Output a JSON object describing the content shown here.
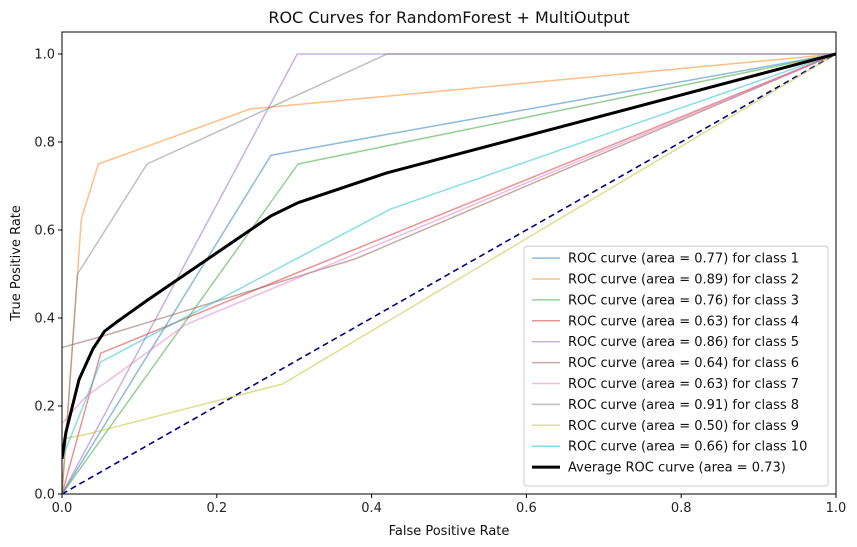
{
  "chart_data": {
    "type": "line",
    "title": "ROC Curves for RandomForest + MultiOutput",
    "xlabel": "False Positive Rate",
    "ylabel": "True Positive Rate",
    "xlim": [
      0.0,
      1.0
    ],
    "ylim": [
      0.0,
      1.05
    ],
    "x_ticks": [
      "0.0",
      "0.2",
      "0.4",
      "0.6",
      "0.8",
      "1.0"
    ],
    "y_ticks": [
      "0.0",
      "0.2",
      "0.4",
      "0.6",
      "0.8",
      "1.0"
    ],
    "grid": false,
    "legend_position": "lower-right",
    "series": [
      {
        "name": "ROC curve (area = 0.77) for class 1",
        "color": "#1f77b4",
        "alpha": 0.5,
        "width": 1.5,
        "points": [
          [
            0,
            0
          ],
          [
            0.27,
            0.77
          ],
          [
            1,
            1
          ]
        ]
      },
      {
        "name": "ROC curve (area = 0.89) for class 2",
        "color": "#ff7f0e",
        "alpha": 0.5,
        "width": 1.5,
        "points": [
          [
            0,
            0
          ],
          [
            0.02,
            0.5
          ],
          [
            0.025,
            0.625
          ],
          [
            0.047,
            0.75
          ],
          [
            0.243,
            0.875
          ],
          [
            1,
            1
          ]
        ]
      },
      {
        "name": "ROC curve (area = 0.76) for class 3",
        "color": "#2ca02c",
        "alpha": 0.5,
        "width": 1.5,
        "points": [
          [
            0,
            0
          ],
          [
            0.305,
            0.75
          ],
          [
            1,
            1
          ]
        ]
      },
      {
        "name": "ROC curve (area = 0.63) for class 4",
        "color": "#d62728",
        "alpha": 0.5,
        "width": 1.5,
        "points": [
          [
            0,
            0
          ],
          [
            0.05,
            0.32
          ],
          [
            0.3,
            0.5
          ],
          [
            1,
            1
          ]
        ]
      },
      {
        "name": "ROC curve (area = 0.86) for class 5",
        "color": "#9467bd",
        "alpha": 0.5,
        "width": 1.5,
        "points": [
          [
            0,
            0
          ],
          [
            0.304,
            1
          ],
          [
            1,
            1
          ]
        ]
      },
      {
        "name": "ROC curve (area = 0.64) for class 6",
        "color": "#8c564b",
        "alpha": 0.5,
        "width": 1.5,
        "points": [
          [
            0,
            0.333
          ],
          [
            0.055,
            0.36
          ],
          [
            0.38,
            0.535
          ],
          [
            1,
            1
          ]
        ]
      },
      {
        "name": "ROC curve (area = 0.63) for class 7",
        "color": "#e377c2",
        "alpha": 0.5,
        "width": 1.5,
        "points": [
          [
            0,
            0.16
          ],
          [
            0.03,
            0.22
          ],
          [
            0.16,
            0.385
          ],
          [
            1,
            1
          ]
        ]
      },
      {
        "name": "ROC curve (area = 0.91) for class 8",
        "color": "#7f7f7f",
        "alpha": 0.5,
        "width": 1.5,
        "points": [
          [
            0,
            0
          ],
          [
            0.02,
            0.5
          ],
          [
            0.11,
            0.75
          ],
          [
            0.42,
            1
          ],
          [
            1,
            1
          ]
        ]
      },
      {
        "name": "ROC curve (area = 0.50) for class 9",
        "color": "#bcbd22",
        "alpha": 0.5,
        "width": 1.5,
        "points": [
          [
            0,
            0.125
          ],
          [
            0.03,
            0.135
          ],
          [
            0.285,
            0.25
          ],
          [
            1,
            1
          ]
        ]
      },
      {
        "name": "ROC curve (area = 0.66) for class 10",
        "color": "#17becf",
        "alpha": 0.5,
        "width": 1.5,
        "points": [
          [
            0,
            0.08
          ],
          [
            0.05,
            0.3
          ],
          [
            0.425,
            0.648
          ],
          [
            1,
            1
          ]
        ]
      },
      {
        "name": "Average ROC curve (area = 0.73)",
        "color": "#000000",
        "alpha": 1,
        "width": 3,
        "points": [
          [
            0,
            0.08
          ],
          [
            0.005,
            0.14
          ],
          [
            0.022,
            0.26
          ],
          [
            0.04,
            0.33
          ],
          [
            0.055,
            0.37
          ],
          [
            0.07,
            0.39
          ],
          [
            0.11,
            0.44
          ],
          [
            0.27,
            0.632
          ],
          [
            0.305,
            0.662
          ],
          [
            0.42,
            0.73
          ],
          [
            1,
            1
          ]
        ]
      }
    ],
    "reference_line": {
      "color": "#000080",
      "style": "dashed",
      "points": [
        [
          0,
          0
        ],
        [
          1,
          1
        ]
      ]
    }
  }
}
